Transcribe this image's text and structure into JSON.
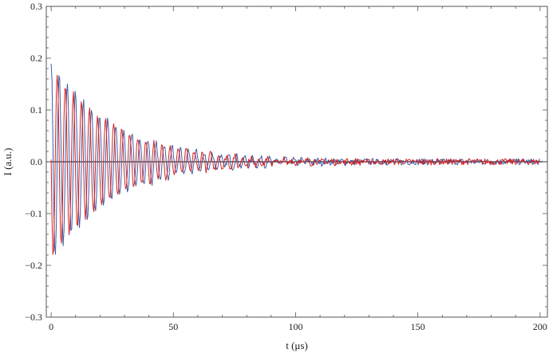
{
  "chart_data": {
    "type": "line",
    "title": "",
    "xlabel": "t (μs)",
    "ylabel": "I (a.u.)",
    "xlim": [
      -2,
      203
    ],
    "ylim": [
      -0.3,
      0.3
    ],
    "xticks": [
      0,
      50,
      100,
      150,
      200
    ],
    "xtick_labels": [
      "0",
      "50",
      "100",
      "150",
      "200"
    ],
    "yticks": [
      -0.3,
      -0.2,
      -0.1,
      0.0,
      0.1,
      0.2,
      0.3
    ],
    "ytick_labels": [
      "−0.3",
      "−0.2",
      "−0.1",
      "0.0",
      "0.1",
      "0.2",
      "0.3"
    ],
    "grid": false,
    "zero_line": true,
    "series": [
      {
        "color": "#3b5ea8",
        "envelope": {
          "amplitude": 0.195,
          "decay_time_us": 26,
          "period_us": 3.3,
          "phase": "cosine",
          "noise": 0.006,
          "t_end": 200
        }
      },
      {
        "color": "#d62020",
        "envelope": {
          "amplitude": 0.19,
          "decay_time_us": 26,
          "period_us": 3.3,
          "phase": "negative-sine",
          "noise": 0.006,
          "t_end": 200
        }
      }
    ]
  }
}
